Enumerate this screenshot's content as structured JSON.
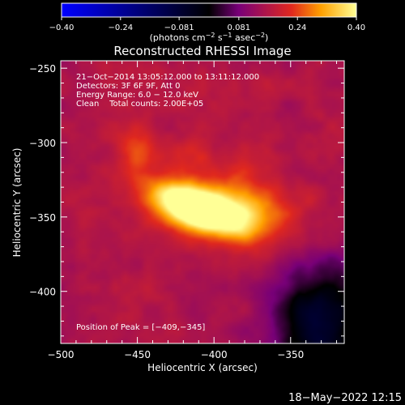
{
  "chart_data": {
    "type": "heatmap",
    "title": "Reconstructed RHESSI Image",
    "xlabel": "Heliocentric X (arcsec)",
    "ylabel": "Heliocentric Y (arcsec)",
    "xlim": [
      -500,
      -315
    ],
    "ylim": [
      -435,
      -245
    ],
    "x_ticks": [
      {
        "value": -500,
        "label": "−500"
      },
      {
        "value": -450,
        "label": "−450"
      },
      {
        "value": -400,
        "label": "−400"
      },
      {
        "value": -350,
        "label": "−350"
      }
    ],
    "y_ticks": [
      {
        "value": -250,
        "label": "−250"
      },
      {
        "value": -300,
        "label": "−300"
      },
      {
        "value": -350,
        "label": "−350"
      },
      {
        "value": -400,
        "label": "−400"
      }
    ],
    "colorbar": {
      "range": [
        -0.4,
        0.4
      ],
      "ticks": [
        {
          "value": -0.4,
          "label": "−0.40"
        },
        {
          "value": -0.24,
          "label": "−0.24"
        },
        {
          "value": -0.081,
          "label": "−0.081"
        },
        {
          "value": 0.081,
          "label": "0.081"
        },
        {
          "value": 0.24,
          "label": "0.24"
        },
        {
          "value": 0.4,
          "label": "0.40"
        }
      ],
      "unit_main": "(photons cm",
      "unit_exp1": "−2",
      "unit_mid": " s",
      "unit_exp2": "−1",
      "unit_mid2": " asec",
      "unit_exp3": "−2",
      "unit_end": ")",
      "colors": [
        "#0000ff",
        "#000000",
        "#780078",
        "#e0281e",
        "#ffa000",
        "#ffff96"
      ]
    },
    "annotations": [
      "21−Oct−2014 13:05:12.000 to 13:11:12.000",
      "Detectors: 3F 6F 9F, Att 0",
      "Energy Range: 6.0 − 12.0 keV",
      "Clean    Total counts: 2.00E+05"
    ],
    "peak_label": "Position of Peak = [−409,−345]",
    "peak": {
      "x": -409,
      "y": -345,
      "value": 0.4
    },
    "sources": [
      {
        "x": -409,
        "y": -345,
        "sx": 22,
        "sy": 9,
        "rot_deg": -20,
        "value": 0.36
      },
      {
        "x": -392,
        "y": -340,
        "sx": 40,
        "sy": 20,
        "rot_deg": -25,
        "value": 0.1
      },
      {
        "x": -450,
        "y": -305,
        "sx": 8,
        "sy": 12,
        "rot_deg": 0,
        "value": 0.08
      },
      {
        "x": -370,
        "y": -343,
        "sx": 12,
        "sy": 9,
        "rot_deg": 0,
        "value": 0.05
      }
    ],
    "background_value": 0.155,
    "dark_regions": [
      {
        "x": -330,
        "y": -420,
        "sx": 22,
        "sy": 30,
        "rot_deg": 0,
        "value": -0.23
      }
    ]
  },
  "footer": {
    "timestamp": "18−May−2022 12:15"
  }
}
